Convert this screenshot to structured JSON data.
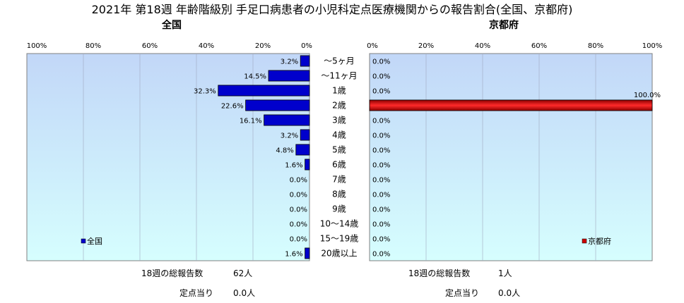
{
  "chart_data": {
    "type": "bar",
    "title": "2021年 第18週 年齢階級別 手足口病患者の小児科定点医療機関からの報告割合(全国、京都府)",
    "categories": [
      "〜5ヶ月",
      "〜11ヶ月",
      "1歳",
      "2歳",
      "3歳",
      "4歳",
      "5歳",
      "6歳",
      "7歳",
      "8歳",
      "9歳",
      "10〜14歳",
      "15〜19歳",
      "20歳以上"
    ],
    "xlim": [
      0,
      100
    ],
    "x_ticks": [
      "0%",
      "20%",
      "40%",
      "60%",
      "80%",
      "100%"
    ],
    "left_ticks": [
      "100%",
      "80%",
      "60%",
      "40%",
      "20%",
      "0%"
    ],
    "grid": true,
    "series": [
      {
        "name": "全国",
        "panel_title": "全国",
        "color": "#0000CC",
        "values": [
          3.2,
          14.5,
          32.3,
          22.6,
          16.1,
          3.2,
          4.8,
          1.6,
          0.0,
          0.0,
          0.0,
          0.0,
          0.0,
          1.6
        ],
        "labels": [
          "3.2%",
          "14.5%",
          "32.3%",
          "22.6%",
          "16.1%",
          "3.2%",
          "4.8%",
          "1.6%",
          "0.0%",
          "0.0%",
          "0.0%",
          "0.0%",
          "0.0%",
          "1.6%"
        ],
        "legend_position": "bottom-left"
      },
      {
        "name": "京都府",
        "panel_title": "京都府",
        "color": "#CC0000",
        "values": [
          0.0,
          0.0,
          0.0,
          100.0,
          0.0,
          0.0,
          0.0,
          0.0,
          0.0,
          0.0,
          0.0,
          0.0,
          0.0,
          0.0
        ],
        "labels": [
          "0.0%",
          "0.0%",
          "0.0%",
          "100.0%",
          "0.0%",
          "0.0%",
          "0.0%",
          "0.0%",
          "0.0%",
          "0.0%",
          "0.0%",
          "0.0%",
          "0.0%",
          "0.0%"
        ],
        "legend_position": "bottom-right"
      }
    ]
  },
  "footer": {
    "national": {
      "total_label": "18週の総報告数",
      "total_value": "62人",
      "per_label": "定点当り",
      "per_value": "0.0人"
    },
    "kyoto": {
      "total_label": "18週の総報告数",
      "total_value": "1人",
      "per_label": "定点当り",
      "per_value": "0.0人"
    }
  },
  "colors": {
    "plot_bg_top": "#C2D7F8",
    "plot_bg_bottom": "#D6FEFE",
    "grid": "#A0A8C0"
  }
}
